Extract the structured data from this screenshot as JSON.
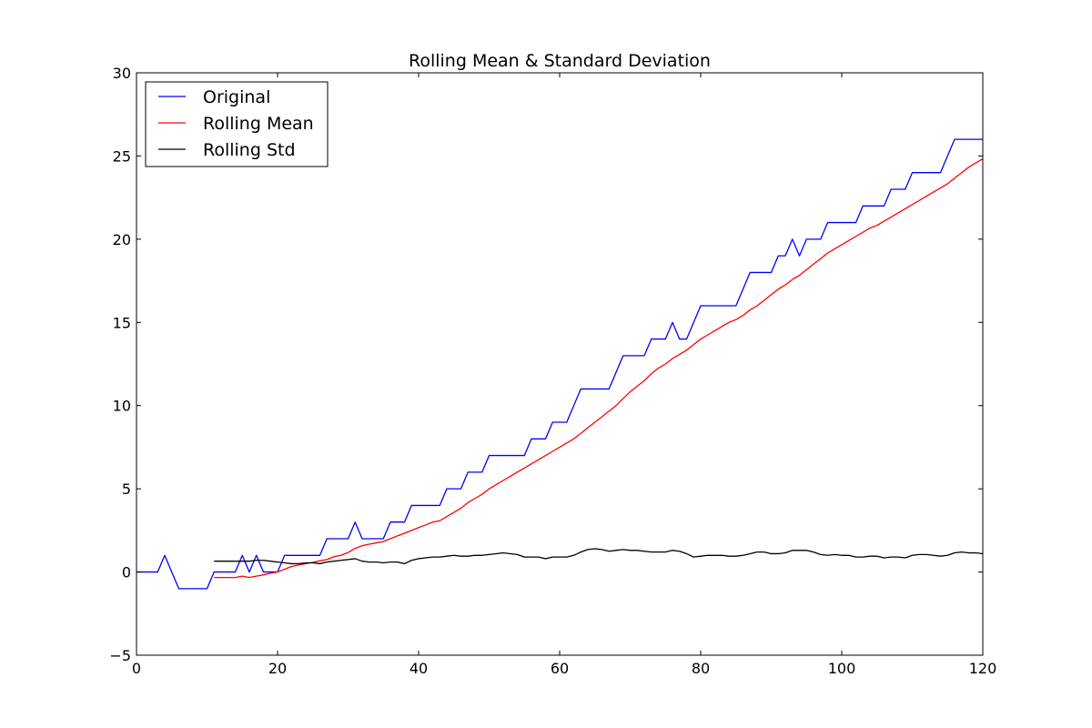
{
  "chart_data": {
    "type": "line",
    "title": "Rolling Mean & Standard Deviation",
    "xlabel": "",
    "ylabel": "",
    "xlim": [
      0,
      120
    ],
    "ylim": [
      -5,
      30
    ],
    "xticks": [
      0,
      20,
      40,
      60,
      80,
      100,
      120
    ],
    "yticks": [
      -5,
      0,
      5,
      10,
      15,
      20,
      25,
      30
    ],
    "xtick_labels": [
      "0",
      "20",
      "40",
      "60",
      "80",
      "100",
      "120"
    ],
    "ytick_labels": [
      "−5",
      "0",
      "5",
      "10",
      "15",
      "20",
      "25",
      "30"
    ],
    "grid": false,
    "legend_position": "top-left",
    "series": [
      {
        "name": "Original",
        "color": "#0000ff",
        "x": [
          0,
          1,
          2,
          3,
          4,
          5,
          6,
          7,
          8,
          9,
          10,
          11,
          12,
          13,
          14,
          15,
          16,
          17,
          18,
          19,
          20,
          21,
          22,
          23,
          24,
          25,
          26,
          27,
          28,
          29,
          30,
          31,
          32,
          33,
          34,
          35,
          36,
          37,
          38,
          39,
          40,
          41,
          42,
          43,
          44,
          45,
          46,
          47,
          48,
          49,
          50,
          51,
          52,
          53,
          54,
          55,
          56,
          57,
          58,
          59,
          60,
          61,
          62,
          63,
          64,
          65,
          66,
          67,
          68,
          69,
          70,
          71,
          72,
          73,
          74,
          75,
          76,
          77,
          78,
          79,
          80,
          81,
          82,
          83,
          84,
          85,
          86,
          87,
          88,
          89,
          90,
          91,
          92,
          93,
          94,
          95,
          96,
          97,
          98,
          99,
          100,
          101,
          102,
          103,
          104,
          105,
          106,
          107,
          108,
          109,
          110,
          111,
          112,
          113,
          114,
          115,
          116,
          117,
          118,
          119,
          120
        ],
        "y": [
          0,
          0,
          0,
          0,
          1,
          0,
          -1,
          -1,
          -1,
          -1,
          -1,
          0,
          0,
          0,
          0,
          1,
          0,
          1,
          0,
          0,
          0,
          1,
          1,
          1,
          1,
          1,
          1,
          2,
          2,
          2,
          2,
          3,
          2,
          2,
          2,
          2,
          3,
          3,
          3,
          4,
          4,
          4,
          4,
          4,
          5,
          5,
          5,
          6,
          6,
          6,
          7,
          7,
          7,
          7,
          7,
          7,
          8,
          8,
          8,
          9,
          9,
          9,
          10,
          11,
          11,
          11,
          11,
          11,
          12,
          13,
          13,
          13,
          13,
          14,
          14,
          14,
          15,
          14,
          14,
          15,
          16,
          16,
          16,
          16,
          16,
          16,
          17,
          18,
          18,
          18,
          18,
          19,
          19,
          20,
          19,
          20,
          20,
          20,
          21,
          21,
          21,
          21,
          21,
          22,
          22,
          22,
          22,
          23,
          23,
          23,
          24,
          24,
          24,
          24,
          24,
          25,
          26,
          26,
          26,
          26,
          26
        ]
      },
      {
        "name": "Rolling Mean",
        "color": "#ff0000",
        "x": [
          11,
          12,
          13,
          14,
          15,
          16,
          17,
          18,
          19,
          20,
          21,
          22,
          23,
          24,
          25,
          26,
          27,
          28,
          29,
          30,
          31,
          32,
          33,
          34,
          35,
          36,
          37,
          38,
          39,
          40,
          41,
          42,
          43,
          44,
          45,
          46,
          47,
          48,
          49,
          50,
          51,
          52,
          53,
          54,
          55,
          56,
          57,
          58,
          59,
          60,
          61,
          62,
          63,
          64,
          65,
          66,
          67,
          68,
          69,
          70,
          71,
          72,
          73,
          74,
          75,
          76,
          77,
          78,
          79,
          80,
          81,
          82,
          83,
          84,
          85,
          86,
          87,
          88,
          89,
          90,
          91,
          92,
          93,
          94,
          95,
          96,
          97,
          98,
          99,
          100,
          101,
          102,
          103,
          104,
          105,
          106,
          107,
          108,
          109,
          110,
          111,
          112,
          113,
          114,
          115,
          116,
          117,
          118,
          119,
          120
        ],
        "y": [
          -0.33,
          -0.33,
          -0.33,
          -0.33,
          -0.25,
          -0.33,
          -0.25,
          -0.17,
          -0.08,
          0,
          0.17,
          0.33,
          0.42,
          0.5,
          0.58,
          0.67,
          0.75,
          0.92,
          1,
          1.17,
          1.42,
          1.58,
          1.67,
          1.75,
          1.83,
          2,
          2.17,
          2.33,
          2.5,
          2.67,
          2.83,
          3,
          3.08,
          3.33,
          3.58,
          3.83,
          4.17,
          4.42,
          4.67,
          5,
          5.25,
          5.5,
          5.75,
          6,
          6.25,
          6.5,
          6.75,
          7,
          7.25,
          7.5,
          7.75,
          8,
          8.33,
          8.67,
          9,
          9.33,
          9.67,
          10,
          10.42,
          10.83,
          11.17,
          11.5,
          11.92,
          12.25,
          12.5,
          12.83,
          13.08,
          13.33,
          13.67,
          14,
          14.25,
          14.5,
          14.75,
          15,
          15.17,
          15.42,
          15.75,
          16,
          16.33,
          16.67,
          17,
          17.25,
          17.58,
          17.83,
          18.17,
          18.5,
          18.83,
          19.17,
          19.42,
          19.67,
          19.92,
          20.17,
          20.42,
          20.67,
          20.83,
          21.08,
          21.33,
          21.58,
          21.83,
          22.08,
          22.33,
          22.58,
          22.83,
          23.08,
          23.33,
          23.67,
          24,
          24.33,
          24.58,
          24.83
        ]
      },
      {
        "name": "Rolling Std",
        "color": "#000000",
        "x": [
          11,
          12,
          13,
          14,
          15,
          16,
          17,
          18,
          19,
          20,
          21,
          22,
          23,
          24,
          25,
          26,
          27,
          28,
          29,
          30,
          31,
          32,
          33,
          34,
          35,
          36,
          37,
          38,
          39,
          40,
          41,
          42,
          43,
          44,
          45,
          46,
          47,
          48,
          49,
          50,
          51,
          52,
          53,
          54,
          55,
          56,
          57,
          58,
          59,
          60,
          61,
          62,
          63,
          64,
          65,
          66,
          67,
          68,
          69,
          70,
          71,
          72,
          73,
          74,
          75,
          76,
          77,
          78,
          79,
          80,
          81,
          82,
          83,
          84,
          85,
          86,
          87,
          88,
          89,
          90,
          91,
          92,
          93,
          94,
          95,
          96,
          97,
          98,
          99,
          100,
          101,
          102,
          103,
          104,
          105,
          106,
          107,
          108,
          109,
          110,
          111,
          112,
          113,
          114,
          115,
          116,
          117,
          118,
          119,
          120
        ],
        "y": [
          0.65,
          0.65,
          0.65,
          0.65,
          0.65,
          0.65,
          0.7,
          0.7,
          0.65,
          0.6,
          0.55,
          0.5,
          0.5,
          0.55,
          0.55,
          0.5,
          0.6,
          0.65,
          0.7,
          0.75,
          0.8,
          0.65,
          0.6,
          0.6,
          0.55,
          0.6,
          0.6,
          0.5,
          0.7,
          0.8,
          0.85,
          0.9,
          0.9,
          0.95,
          1,
          0.95,
          0.95,
          1,
          1,
          1.05,
          1.1,
          1.15,
          1.1,
          1.05,
          0.9,
          0.9,
          0.9,
          0.8,
          0.9,
          0.9,
          0.9,
          1,
          1.2,
          1.35,
          1.4,
          1.35,
          1.25,
          1.3,
          1.35,
          1.3,
          1.3,
          1.25,
          1.2,
          1.2,
          1.2,
          1.3,
          1.25,
          1.1,
          0.9,
          0.95,
          1,
          1,
          1,
          0.95,
          0.95,
          1,
          1.1,
          1.2,
          1.2,
          1.1,
          1.1,
          1.15,
          1.3,
          1.3,
          1.3,
          1.2,
          1.05,
          1,
          1.05,
          1,
          1,
          0.9,
          0.9,
          0.95,
          0.95,
          0.85,
          0.9,
          0.9,
          0.85,
          1,
          1.05,
          1.05,
          1,
          0.95,
          1,
          1.15,
          1.2,
          1.15,
          1.15,
          1.1
        ]
      }
    ]
  }
}
